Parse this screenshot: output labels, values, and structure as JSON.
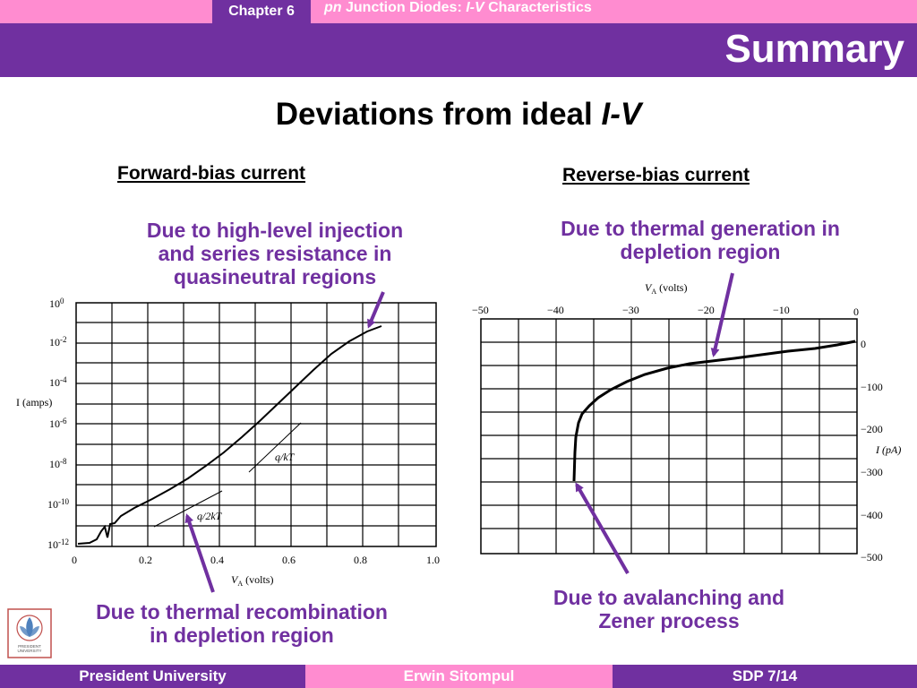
{
  "header": {
    "chapter": "Chapter 6",
    "title_pre": "pn",
    "title_mid": " Junction Diodes: ",
    "title_iv": "I-V",
    "title_post": " Characteristics",
    "section": "Summary"
  },
  "slide": {
    "heading_pre": "Deviations from ideal ",
    "heading_iv": "I-V",
    "forward_head": "Forward-bias current",
    "reverse_head": "Reverse-bias current",
    "note_high_level": [
      "Due to high-level injection",
      "and series resistance in",
      "quasineutral regions"
    ],
    "note_recombination": [
      "Due to thermal recombination",
      "in depletion region"
    ],
    "note_generation": [
      "Due to thermal generation in",
      "depletion region"
    ],
    "note_avalanche": [
      "Due to avalanching and",
      "Zener process"
    ]
  },
  "left_plot": {
    "y_ticks": [
      "10",
      "10",
      "10",
      "10",
      "10",
      "10",
      "10"
    ],
    "y_exps": [
      "0",
      "-2",
      "-4",
      "-6",
      "-8",
      "-10",
      "-12"
    ],
    "ylabel": "I (amps)",
    "x_ticks": [
      "0",
      "0.2",
      "0.4",
      "0.6",
      "0.8",
      "1.0"
    ],
    "xlabel": "V",
    "xlabel_sub": "A",
    "xlabel_unit": " (volts)",
    "slope1": "q/kT",
    "slope2": "q/2kT"
  },
  "right_plot": {
    "x_ticks": [
      "−50",
      "−40",
      "−30",
      "−20",
      "−10",
      "0"
    ],
    "xlabel": "V",
    "xlabel_sub": "A",
    "xlabel_unit": " (volts)",
    "y_ticks": [
      "0",
      "−100",
      "−200",
      "−300",
      "−400",
      "−500"
    ],
    "ylabel": "I (pA)"
  },
  "footer": {
    "left": "President University",
    "center": "Erwin Sitompul",
    "right": "SDP 7/14"
  },
  "logo_text": [
    "PRESIDENT",
    "UNIVERSITY"
  ],
  "colors": {
    "accent_purple": "#7030a0",
    "accent_pink": "#ff8cd0"
  }
}
